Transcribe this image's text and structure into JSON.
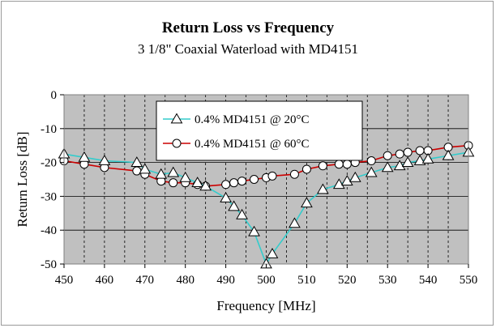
{
  "chart_data": {
    "type": "line",
    "title": "Return Loss vs Frequency",
    "subtitle": "3 1/8\" Coaxial Waterload with MD4151",
    "xlabel": "Frequency [MHz]",
    "ylabel": "Return Loss [dB]",
    "xlim": [
      450,
      550
    ],
    "ylim": [
      -50,
      0
    ],
    "x_ticks": [
      450,
      460,
      470,
      480,
      490,
      500,
      510,
      520,
      530,
      540,
      550
    ],
    "y_ticks": [
      0,
      -10,
      -20,
      -30,
      -40,
      -50
    ],
    "grid": "vertical dashed, horizontal solid",
    "plot_background": "#c0c0c0",
    "legend_position": "top-center",
    "series": [
      {
        "name": "0.4% MD4151 @ 20°C",
        "color": "#33cccc",
        "marker": "triangle",
        "x": [
          450,
          455,
          460,
          468,
          470,
          474,
          477,
          480,
          483,
          485,
          490,
          492,
          494,
          497,
          500,
          501.5,
          507,
          510,
          514,
          518,
          520,
          522,
          526,
          530,
          533,
          535,
          538,
          540,
          545,
          550
        ],
        "y": [
          -17.5,
          -18.5,
          -19.5,
          -20.0,
          -22.0,
          -23.5,
          -23.0,
          -24.5,
          -26.0,
          -27.0,
          -30.5,
          -33.0,
          -35.5,
          -40.5,
          -50.0,
          -47.0,
          -38.0,
          -32.0,
          -28.0,
          -26.5,
          -25.5,
          -24.5,
          -23.0,
          -21.5,
          -21.0,
          -20.0,
          -19.5,
          -19.0,
          -18.0,
          -17.0
        ]
      },
      {
        "name": "0.4% MD4151 @ 60°C",
        "color": "#cc0000",
        "marker": "circle",
        "x": [
          450,
          455,
          460,
          468,
          470,
          474,
          477,
          480,
          483,
          485,
          490,
          492,
          494,
          497,
          500,
          501.5,
          507,
          510,
          514,
          518,
          520,
          522,
          526,
          530,
          533,
          535,
          538,
          540,
          545,
          550
        ],
        "y": [
          -19.5,
          -20.5,
          -21.5,
          -22.5,
          -23.5,
          -25.5,
          -26.0,
          -26.0,
          -26.5,
          -27.0,
          -26.5,
          -26.0,
          -25.5,
          -25.0,
          -24.5,
          -24.0,
          -23.5,
          -22.0,
          -21.0,
          -20.5,
          -20.5,
          -20.0,
          -19.5,
          -18.0,
          -17.5,
          -17.0,
          -16.5,
          -16.5,
          -15.5,
          -15.0
        ]
      }
    ]
  }
}
